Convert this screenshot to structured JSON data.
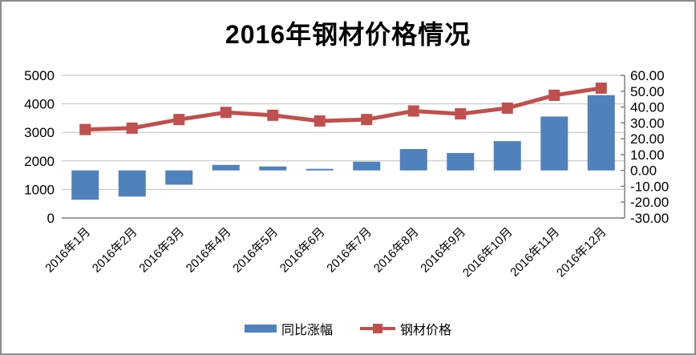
{
  "chart_data": {
    "type": "combo",
    "title": "2016年钢材价格情况",
    "categories": [
      "2016年1月",
      "2016年2月",
      "2016年3月",
      "2016年4月",
      "2016年5月",
      "2016年6月",
      "2016年7月",
      "2016年8月",
      "2016年9月",
      "2016年10月",
      "2016年11月",
      "2016年12月"
    ],
    "series": [
      {
        "name": "同比涨幅",
        "type": "bar",
        "axis": "right",
        "color": "#4F81BD",
        "values": [
          -18.5,
          -16.5,
          -9,
          3.5,
          2.5,
          1,
          5.5,
          13.5,
          11,
          18.5,
          34,
          47.5
        ]
      },
      {
        "name": "钢材价格",
        "type": "line",
        "axis": "left",
        "color": "#C0504D",
        "values": [
          3100,
          3150,
          3450,
          3700,
          3600,
          3400,
          3450,
          3750,
          3650,
          3850,
          4300,
          4550
        ]
      }
    ],
    "left_axis": {
      "min": 0,
      "max": 5000,
      "step": 1000,
      "tick_labels": [
        "5000",
        "4000",
        "3000",
        "2000",
        "1000",
        "0"
      ]
    },
    "right_axis": {
      "min": -30,
      "max": 60,
      "step": 10,
      "tick_labels": [
        "60.00",
        "50.00",
        "40.00",
        "30.00",
        "20.00",
        "10.00",
        "0.00",
        "-10.00",
        "-20.00",
        "-30.00"
      ]
    },
    "legend": {
      "position": "bottom"
    },
    "grid": true,
    "colors": {
      "gridline": "#BFBFBF",
      "axis_line": "#808080",
      "frame_border": "#8C8C8C",
      "text": "#000000"
    }
  }
}
